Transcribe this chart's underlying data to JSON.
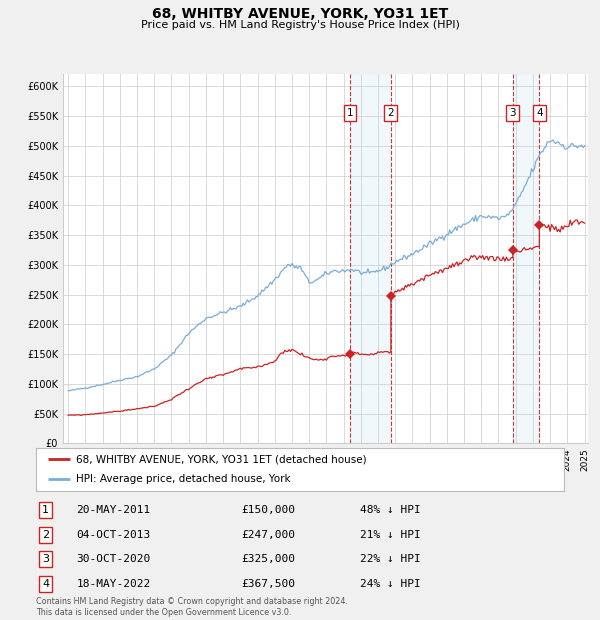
{
  "title": "68, WHITBY AVENUE, YORK, YO31 1ET",
  "subtitle": "Price paid vs. HM Land Registry's House Price Index (HPI)",
  "footer": "Contains HM Land Registry data © Crown copyright and database right 2024.\nThis data is licensed under the Open Government Licence v3.0.",
  "legend_line1": "68, WHITBY AVENUE, YORK, YO31 1ET (detached house)",
  "legend_line2": "HPI: Average price, detached house, York",
  "transactions": [
    {
      "label": "1",
      "date": "20-MAY-2011",
      "price": 150000,
      "price_str": "£150,000",
      "note": "48% ↓ HPI"
    },
    {
      "label": "2",
      "date": "04-OCT-2013",
      "price": 247000,
      "price_str": "£247,000",
      "note": "21% ↓ HPI"
    },
    {
      "label": "3",
      "date": "30-OCT-2020",
      "price": 325000,
      "price_str": "£325,000",
      "note": "22% ↓ HPI"
    },
    {
      "label": "4",
      "date": "18-MAY-2022",
      "price": 367500,
      "price_str": "£367,500",
      "note": "24% ↓ HPI"
    }
  ],
  "trans_years": [
    2011.375,
    2013.75,
    2020.833,
    2022.375
  ],
  "trans_prices": [
    150000,
    247000,
    325000,
    367500
  ],
  "ylim": [
    0,
    620000
  ],
  "yticks": [
    0,
    50000,
    100000,
    150000,
    200000,
    250000,
    300000,
    350000,
    400000,
    450000,
    500000,
    550000,
    600000
  ],
  "ytick_labels": [
    "£0",
    "£50K",
    "£100K",
    "£150K",
    "£200K",
    "£250K",
    "£300K",
    "£350K",
    "£400K",
    "£450K",
    "£500K",
    "£550K",
    "£600K"
  ],
  "hpi_color": "#7aacdc",
  "price_color": "#cc2222",
  "background_color": "#f0f0f0",
  "plot_bg_color": "#ffffff",
  "shade_color": "#d0e8f8",
  "dashed_color": "#cc2222",
  "grid_color": "#cccccc",
  "xstart_year": 1995,
  "xend_year": 2025
}
